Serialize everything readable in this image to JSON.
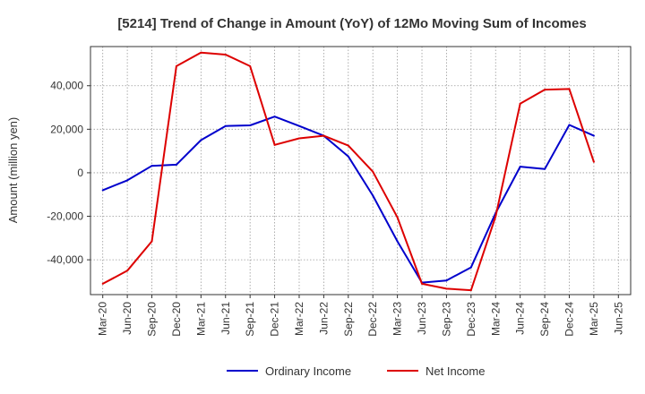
{
  "chart_data": {
    "type": "line",
    "title": "[5214]  Trend of Change in Amount (YoY) of 12Mo Moving Sum of Incomes",
    "xlabel": "",
    "ylabel": "Amount (million yen)",
    "ylim": [
      -56000,
      58000
    ],
    "yticks": [
      -40000,
      -20000,
      0,
      20000,
      40000
    ],
    "ytick_labels": [
      "-40,000",
      "-20,000",
      "0",
      "20,000",
      "40,000"
    ],
    "x_tick_labels": [
      "Mar-20",
      "Jun-20",
      "Sep-20",
      "Dec-20",
      "Mar-21",
      "Jun-21",
      "Sep-21",
      "Dec-21",
      "Mar-22",
      "Jun-22",
      "Sep-22",
      "Dec-22",
      "Mar-23",
      "Jun-23",
      "Sep-23",
      "Dec-23",
      "Mar-24",
      "Jun-24",
      "Sep-24",
      "Dec-24",
      "Mar-25",
      "Jun-25"
    ],
    "grid": true,
    "legend_position": "bottom-center",
    "series": [
      {
        "name": "Ordinary Income",
        "color": "#0000cc",
        "values": [
          -8000,
          -3500,
          3200,
          3700,
          15000,
          21500,
          21800,
          25800,
          21500,
          17000,
          7500,
          -10500,
          -31500,
          -50500,
          -49500,
          -43500,
          -18500,
          2800,
          1700,
          22000,
          17000
        ]
      },
      {
        "name": "Net Income",
        "color": "#dd0000",
        "values": [
          -51000,
          -45000,
          -31500,
          49000,
          55200,
          54300,
          49000,
          12800,
          15800,
          17000,
          12500,
          500,
          -20500,
          -51000,
          -53300,
          -54000,
          -20000,
          31800,
          38200,
          38500,
          5000
        ]
      }
    ]
  }
}
